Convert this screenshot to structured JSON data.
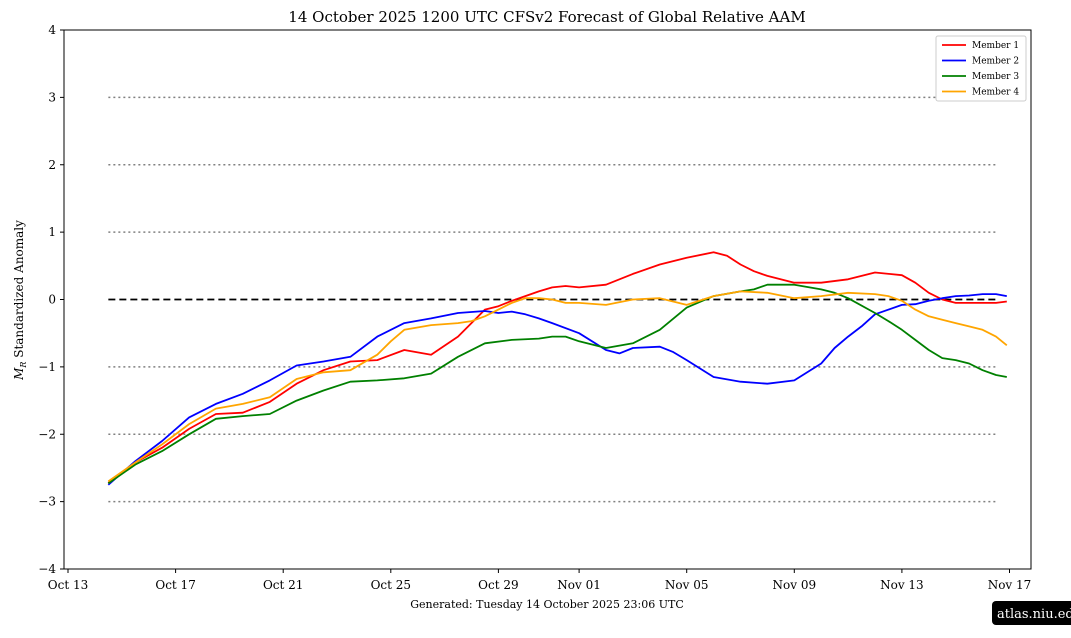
{
  "chart_data": {
    "type": "line",
    "title": "14  October  2025 1200 UTC   CFSv2 Forecast of Global Relative AAM",
    "ylabel": "M_R Standardized Anomaly",
    "xlabel": "",
    "ylim": [
      -4,
      4
    ],
    "xlim": [
      -0.2,
      34.9
    ],
    "yticks": [
      -4,
      -3,
      -2,
      -1,
      0,
      1,
      2,
      3,
      4
    ],
    "ytick_labels": [
      "−4",
      "−3",
      "−2",
      "−1",
      "0",
      "1",
      "2",
      "3",
      "4"
    ],
    "xticks": [
      0,
      4,
      8,
      12,
      16,
      19,
      23,
      27,
      31,
      35
    ],
    "xtick_labels": [
      "Oct 13",
      "Oct 17",
      "Oct 21",
      "Oct 25",
      "Oct 29",
      "Nov 01",
      "Nov 05",
      "Nov 09",
      "Nov 13",
      "Nov 17"
    ],
    "reference_lines": {
      "zero": 0,
      "dotted": [
        -3,
        -2,
        -1,
        1,
        2,
        3
      ]
    },
    "series": [
      {
        "name": "Member 1",
        "color": "#ff0000",
        "x": [
          1.5,
          2.5,
          3.5,
          4.5,
          5.5,
          6.5,
          7.5,
          8.5,
          9.5,
          10.5,
          11.5,
          12.5,
          13.5,
          14.5,
          15.5,
          16,
          16.5,
          17,
          17.5,
          18,
          18.5,
          19,
          20,
          21,
          22,
          23,
          24,
          24.5,
          25,
          25.5,
          26,
          27,
          28,
          29,
          30,
          31,
          31.5,
          32,
          32.5,
          33,
          33.5,
          34,
          34.5,
          34.9
        ],
        "values": [
          -2.72,
          -2.42,
          -2.2,
          -1.92,
          -1.7,
          -1.68,
          -1.52,
          -1.25,
          -1.05,
          -0.92,
          -0.9,
          -0.75,
          -0.82,
          -0.55,
          -0.15,
          -0.1,
          -0.02,
          0.05,
          0.12,
          0.18,
          0.2,
          0.18,
          0.22,
          0.38,
          0.52,
          0.62,
          0.7,
          0.65,
          0.52,
          0.42,
          0.35,
          0.25,
          0.25,
          0.3,
          0.4,
          0.36,
          0.25,
          0.1,
          0.0,
          -0.05,
          -0.05,
          -0.05,
          -0.05,
          -0.03
        ]
      },
      {
        "name": "Member 2",
        "color": "#0000ff",
        "x": [
          1.5,
          2.5,
          3.5,
          4.5,
          5.5,
          6.5,
          7.5,
          8.5,
          9.5,
          10.5,
          11.5,
          12.5,
          13.5,
          14.5,
          15.5,
          16,
          16.5,
          17,
          17.5,
          18,
          19,
          20,
          20.5,
          21,
          22,
          22.5,
          23,
          24,
          25,
          26,
          27,
          28,
          28.5,
          29,
          29.5,
          30,
          31,
          31.5,
          32,
          32.5,
          33,
          33.5,
          34,
          34.5,
          34.9
        ],
        "values": [
          -2.75,
          -2.4,
          -2.1,
          -1.75,
          -1.55,
          -1.4,
          -1.2,
          -0.98,
          -0.92,
          -0.85,
          -0.55,
          -0.35,
          -0.28,
          -0.2,
          -0.17,
          -0.2,
          -0.18,
          -0.22,
          -0.28,
          -0.35,
          -0.5,
          -0.75,
          -0.8,
          -0.72,
          -0.7,
          -0.78,
          -0.9,
          -1.15,
          -1.22,
          -1.25,
          -1.2,
          -0.95,
          -0.72,
          -0.55,
          -0.4,
          -0.22,
          -0.08,
          -0.07,
          -0.02,
          0.02,
          0.05,
          0.06,
          0.08,
          0.08,
          0.05
        ]
      },
      {
        "name": "Member 3",
        "color": "#008000",
        "x": [
          1.5,
          2.5,
          3.5,
          4.5,
          5.5,
          6.5,
          7.5,
          8.5,
          9.5,
          10.5,
          11.5,
          12.5,
          13.5,
          14.5,
          15.5,
          16.5,
          17.5,
          18,
          18.5,
          19,
          20,
          21,
          22,
          23,
          24,
          25,
          25.5,
          26,
          27,
          28,
          28.5,
          29,
          30,
          30.5,
          31,
          31.5,
          32,
          32.5,
          33,
          33.5,
          34,
          34.5,
          34.9
        ],
        "values": [
          -2.73,
          -2.45,
          -2.25,
          -2.0,
          -1.77,
          -1.73,
          -1.7,
          -1.5,
          -1.35,
          -1.22,
          -1.2,
          -1.17,
          -1.1,
          -0.85,
          -0.65,
          -0.6,
          -0.58,
          -0.55,
          -0.55,
          -0.62,
          -0.72,
          -0.65,
          -0.45,
          -0.12,
          0.05,
          0.12,
          0.15,
          0.22,
          0.22,
          0.15,
          0.1,
          0.02,
          -0.2,
          -0.32,
          -0.45,
          -0.6,
          -0.75,
          -0.87,
          -0.9,
          -0.95,
          -1.05,
          -1.12,
          -1.15
        ]
      },
      {
        "name": "Member 4",
        "color": "#ffa500",
        "x": [
          1.5,
          2.5,
          3.5,
          4.5,
          5.5,
          6.5,
          7.5,
          8.5,
          9.5,
          10.5,
          11.5,
          12,
          12.5,
          13.5,
          14.5,
          15,
          15.5,
          16,
          16.5,
          17,
          17.5,
          18,
          18.5,
          19,
          20,
          21,
          22,
          23,
          24,
          25,
          26,
          27,
          28,
          29,
          30,
          30.5,
          31,
          31.5,
          32,
          32.5,
          33,
          33.5,
          34,
          34.5,
          34.9
        ],
        "values": [
          -2.7,
          -2.42,
          -2.15,
          -1.85,
          -1.62,
          -1.55,
          -1.45,
          -1.18,
          -1.08,
          -1.05,
          -0.82,
          -0.62,
          -0.45,
          -0.38,
          -0.35,
          -0.32,
          -0.25,
          -0.15,
          -0.05,
          0.02,
          0.02,
          0.0,
          -0.05,
          -0.05,
          -0.08,
          0.0,
          0.02,
          -0.08,
          0.05,
          0.12,
          0.1,
          0.02,
          0.05,
          0.1,
          0.08,
          0.05,
          -0.02,
          -0.15,
          -0.25,
          -0.3,
          -0.35,
          -0.4,
          -0.45,
          -0.55,
          -0.68
        ]
      }
    ],
    "legend_position": "top-right"
  },
  "footer": {
    "generated": "Generated: Tuesday  14  October  2025  23:06 UTC",
    "watermark": "atlas.niu.edu"
  }
}
